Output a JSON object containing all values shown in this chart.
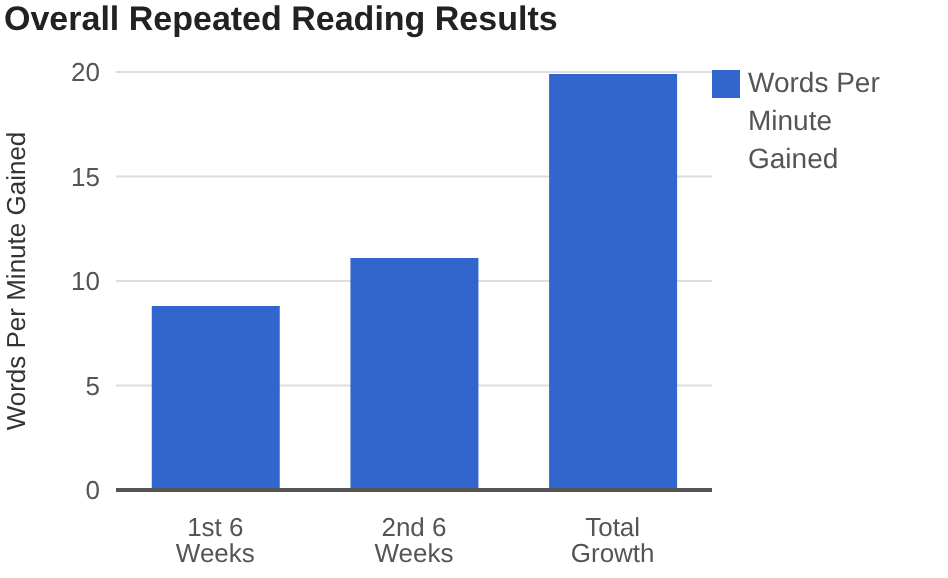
{
  "chart_data": {
    "type": "bar",
    "title": "Overall Repeated Reading Results",
    "ylabel": "Words Per Minute Gained",
    "categories": [
      "1st 6 Weeks",
      "2nd 6 Weeks",
      "Total Growth"
    ],
    "series": [
      {
        "name": "Words Per Minute Gained",
        "color": "#3366cc",
        "values": [
          8.8,
          11.1,
          19.9
        ]
      }
    ],
    "ylim": [
      0,
      20
    ],
    "yticks": [
      0,
      5,
      10,
      15,
      20
    ],
    "grid": "y",
    "legend": "top right"
  }
}
